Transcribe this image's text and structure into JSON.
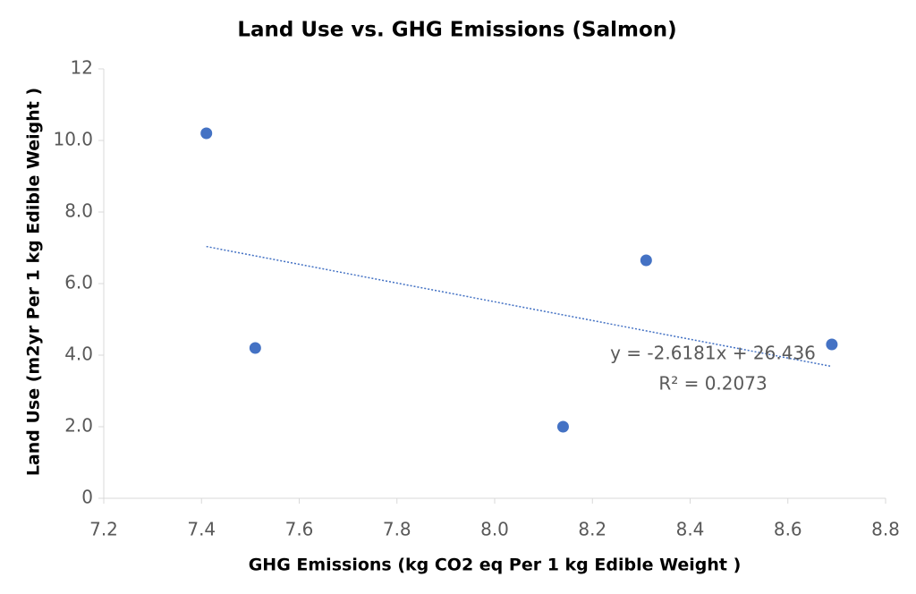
{
  "chart_data": {
    "type": "scatter",
    "title": "Land Use vs. GHG Emissions (Salmon)",
    "x_label": "GHG Emissions  (kg CO2 eq Per 1 kg Edible Weight )",
    "y_label": "Land Use (m2yr Per 1 kg Edible Weight )",
    "x": [
      7.41,
      7.51,
      8.14,
      8.31,
      8.69
    ],
    "y": [
      10.2,
      4.2,
      2.0,
      6.65,
      4.3
    ],
    "color": "#4472c4",
    "xlim": [
      7.2,
      8.8
    ],
    "xticks": [
      7.2,
      7.4,
      7.6,
      7.8,
      {
        "value": 8,
        "label": "8.0"
      },
      8.2,
      8.4,
      8.6,
      8.8
    ],
    "ylim": [
      0,
      12
    ],
    "yticks": [
      0,
      {
        "value": 2,
        "label": "2.0"
      },
      {
        "value": 4,
        "label": "4.0"
      },
      {
        "value": 6,
        "label": "6.0"
      },
      {
        "value": 8,
        "label": "8.0"
      },
      {
        "value": 10,
        "label": "10.0"
      },
      12
    ],
    "grid": false,
    "trendline": {
      "slope": -2.6181,
      "intercept": 26.436,
      "equation": "y = -2.6181x + 26.436",
      "r2_label": "R² = 0.2073"
    }
  }
}
